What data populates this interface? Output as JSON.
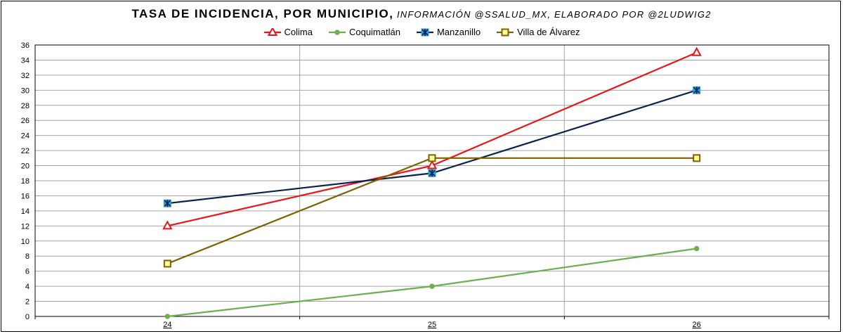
{
  "title": {
    "main": "TASA DE INCIDENCIA, POR MUNICIPIO,",
    "sub": "INFORMACIÓN @SSALUD_MX, ELABORADO POR @2LUDWIG2"
  },
  "chart_data": {
    "type": "line",
    "categories": [
      "24",
      "25",
      "26"
    ],
    "ylim": [
      0,
      36
    ],
    "ytick_step": 2,
    "grid": true,
    "legend_position": "top-center",
    "series": [
      {
        "name": "Colima",
        "values": [
          12,
          20,
          35
        ],
        "color": "#e8161b",
        "marker": "triangle"
      },
      {
        "name": "Coquimatlán",
        "values": [
          0,
          4,
          9
        ],
        "color": "#6ab04c",
        "marker": "dot"
      },
      {
        "name": "Manzanillo",
        "values": [
          15,
          19,
          30
        ],
        "color": "#0b2150",
        "marker": "square-star"
      },
      {
        "name": "Villa de Álvarez",
        "values": [
          7,
          21,
          21
        ],
        "color": "#7f6000",
        "marker": "square"
      }
    ]
  }
}
